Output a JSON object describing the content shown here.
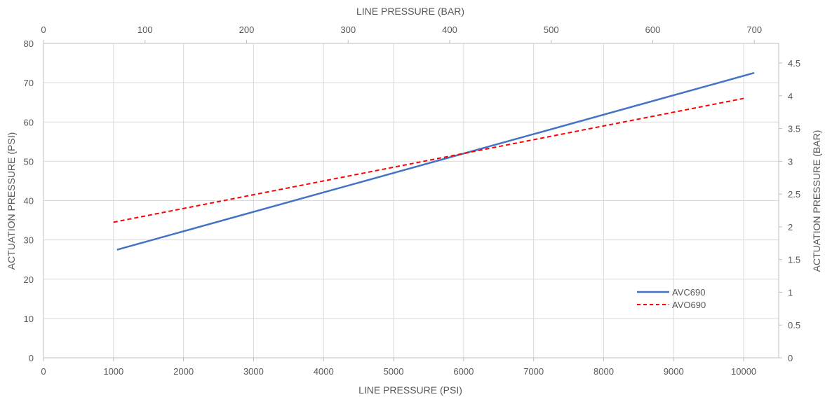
{
  "chart_data": {
    "type": "line",
    "x_bottom": {
      "label": "LINE PRESSURE (PSI)",
      "range": [
        0,
        10500
      ],
      "ticks": [
        0,
        1000,
        2000,
        3000,
        4000,
        5000,
        6000,
        7000,
        8000,
        9000,
        10000
      ],
      "tick_labels": [
        "0",
        "1000",
        "2000",
        "3000",
        "4000",
        "5000",
        "6000",
        "7000",
        "8000",
        "9000",
        "10000"
      ]
    },
    "x_top": {
      "label": "LINE PRESSURE (BAR)",
      "range": [
        0,
        724
      ],
      "ticks": [
        0,
        100,
        200,
        300,
        400,
        500,
        600,
        700
      ],
      "tick_labels": [
        "0",
        "100",
        "200",
        "300",
        "400",
        "500",
        "600",
        "700"
      ]
    },
    "y_left": {
      "label": "ACTUATION PRESSURE (PSI)",
      "range": [
        0,
        80
      ],
      "ticks": [
        0,
        10,
        20,
        30,
        40,
        50,
        60,
        70,
        80
      ],
      "tick_labels": [
        "0",
        "10",
        "20",
        "30",
        "40",
        "50",
        "60",
        "70",
        "80"
      ]
    },
    "y_right": {
      "label": "ACTUATION PRESSURE (BAR)",
      "range": [
        0,
        4.8
      ],
      "ticks": [
        0,
        0.5,
        1,
        1.5,
        2,
        2.5,
        3,
        3.5,
        4,
        4.5
      ],
      "tick_labels": [
        "0",
        "0.5",
        "1",
        "1.5",
        "2",
        "2.5",
        "3",
        "3.5",
        "4",
        "4.5"
      ]
    },
    "series": [
      {
        "name": "AVC690",
        "x": [
          1050,
          10150
        ],
        "y": [
          27.5,
          72.5
        ],
        "color": "#4472C4",
        "dash": "solid"
      },
      {
        "name": "AVO690",
        "x": [
          1000,
          10000
        ],
        "y": [
          34.5,
          66
        ],
        "color": "#FF0000",
        "dash": "dashed"
      }
    ],
    "grid": true,
    "legend_position": "bottom-right"
  }
}
